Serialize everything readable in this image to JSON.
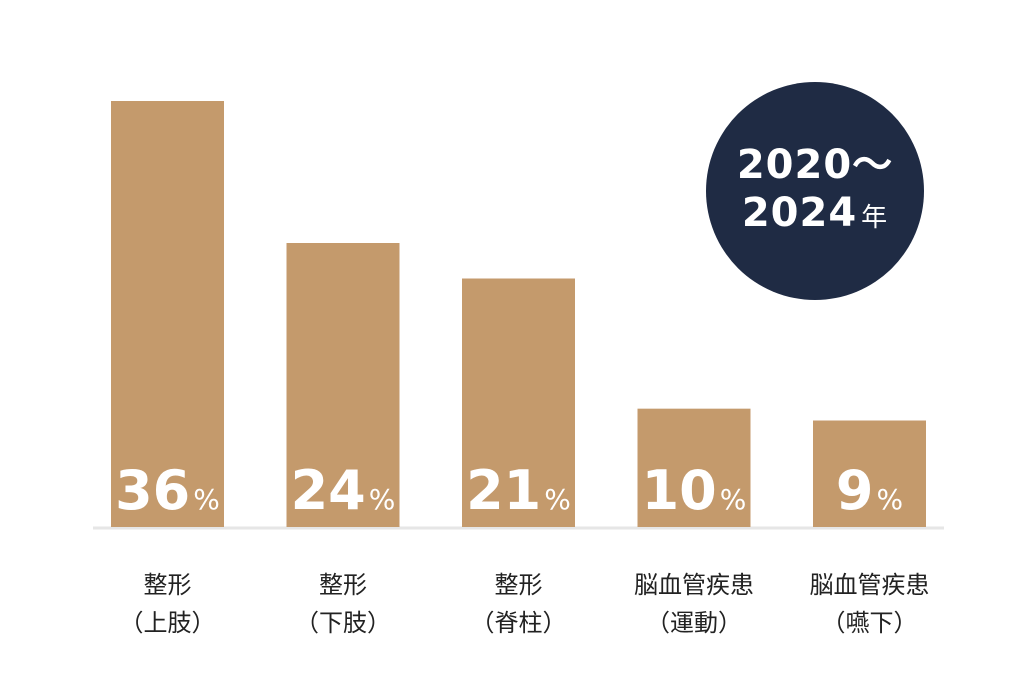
{
  "chart_data": {
    "type": "bar",
    "categories": [
      {
        "line1": "整形",
        "line2": "（上肢）"
      },
      {
        "line1": "整形",
        "line2": "（下肢）"
      },
      {
        "line1": "整形",
        "line2": "（脊柱）"
      },
      {
        "line1": "脳血管疾患",
        "line2": "（運動）"
      },
      {
        "line1": "脳血管疾患",
        "line2": "（嚥下）"
      }
    ],
    "values": [
      36,
      24,
      21,
      10,
      9
    ],
    "value_labels": [
      "36",
      "24",
      "21",
      "10",
      "9"
    ],
    "unit": "%",
    "ylim": [
      0,
      40
    ],
    "grid": false,
    "legend": "none"
  },
  "badge": {
    "line1": "2020～",
    "line2": "2024",
    "suffix": "年"
  },
  "colors": {
    "bar": "#c49a6c",
    "badge": "#1f2b44",
    "baseline": "#e6e6e6",
    "value_text": "#ffffff"
  }
}
